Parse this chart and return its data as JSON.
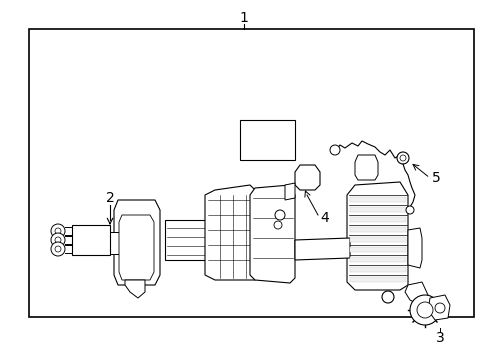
{
  "background_color": "#ffffff",
  "border_color": "#000000",
  "line_color": "#000000",
  "text_color": "#000000",
  "title_number": "1",
  "font_size_labels": 10,
  "line_width": 0.8,
  "border": [
    0.06,
    0.08,
    0.97,
    0.88
  ]
}
